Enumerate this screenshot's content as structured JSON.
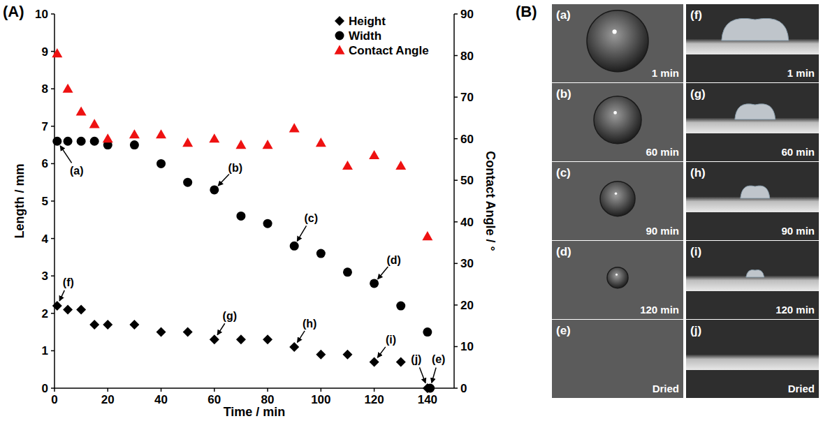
{
  "chart_data": {
    "type": "scatter",
    "panel_label": "(A)",
    "x_label": "Time / min",
    "y_label": "Length / mm",
    "y2_label": "Contact Angle / °",
    "xlim": [
      0,
      150
    ],
    "xticks": [
      0,
      20,
      40,
      60,
      80,
      100,
      120,
      140
    ],
    "ylim": [
      0,
      10
    ],
    "yticks": [
      0,
      1,
      2,
      3,
      4,
      5,
      6,
      7,
      8,
      9,
      10
    ],
    "y2lim": [
      0,
      90
    ],
    "y2ticks": [
      0,
      10,
      20,
      30,
      40,
      50,
      60,
      70,
      80,
      90
    ],
    "grid": false,
    "legend": "upper right",
    "series": [
      {
        "name": "Height",
        "color": "#000000",
        "marker": "diamond",
        "x": [
          1,
          5,
          10,
          15,
          20,
          30,
          40,
          50,
          60,
          70,
          80,
          90,
          100,
          110,
          120,
          130,
          140
        ],
        "values": [
          2.2,
          2.1,
          2.1,
          1.7,
          1.7,
          1.7,
          1.5,
          1.5,
          1.3,
          1.3,
          1.3,
          1.1,
          0.9,
          0.9,
          0.7,
          0.7,
          0
        ]
      },
      {
        "name": "Width",
        "color": "#000000",
        "marker": "circle",
        "x": [
          1,
          5,
          10,
          15,
          20,
          30,
          40,
          50,
          60,
          70,
          80,
          90,
          100,
          110,
          120,
          130,
          140,
          141
        ],
        "values": [
          6.6,
          6.6,
          6.6,
          6.6,
          6.5,
          6.5,
          6.0,
          5.5,
          5.3,
          4.6,
          4.4,
          3.8,
          3.6,
          3.1,
          2.8,
          2.2,
          1.5,
          0
        ]
      },
      {
        "name": "Contact Angle",
        "color": "#ee1111",
        "marker": "triangle",
        "axis": "y2",
        "x": [
          1,
          5,
          10,
          15,
          20,
          30,
          40,
          50,
          60,
          70,
          80,
          90,
          100,
          110,
          120,
          130,
          140
        ],
        "values": [
          80.5,
          72,
          66.5,
          63.5,
          60,
          61,
          61,
          59,
          60,
          58.5,
          58.5,
          62.5,
          59,
          53.5,
          56,
          53.5,
          36.5
        ]
      }
    ],
    "annotations": [
      {
        "text": "(a)",
        "x": 1,
        "y": 6.6
      },
      {
        "text": "(b)",
        "x": 60,
        "y": 5.3
      },
      {
        "text": "(c)",
        "x": 90,
        "y": 3.8
      },
      {
        "text": "(d)",
        "x": 120,
        "y": 2.8
      },
      {
        "text": "(e)",
        "x": 141,
        "y": 0
      },
      {
        "text": "(f)",
        "x": 1,
        "y": 2.2
      },
      {
        "text": "(g)",
        "x": 60,
        "y": 1.3
      },
      {
        "text": "(h)",
        "x": 90,
        "y": 1.1
      },
      {
        "text": "(i)",
        "x": 120,
        "y": 0.7
      },
      {
        "text": "(j)",
        "x": 140,
        "y": 0
      }
    ]
  },
  "photos": {
    "panel_label": "(B)",
    "columns": [
      [
        {
          "label": "(a)",
          "caption": "1 min"
        },
        {
          "label": "(b)",
          "caption": "60 min"
        },
        {
          "label": "(c)",
          "caption": "90 min"
        },
        {
          "label": "(d)",
          "caption": "120 min"
        },
        {
          "label": "(e)",
          "caption": "Dried"
        }
      ],
      [
        {
          "label": "(f)",
          "caption": "1 min"
        },
        {
          "label": "(g)",
          "caption": "60 min"
        },
        {
          "label": "(h)",
          "caption": "90 min"
        },
        {
          "label": "(i)",
          "caption": "120 min"
        },
        {
          "label": "(j)",
          "caption": "Dried"
        }
      ]
    ]
  }
}
